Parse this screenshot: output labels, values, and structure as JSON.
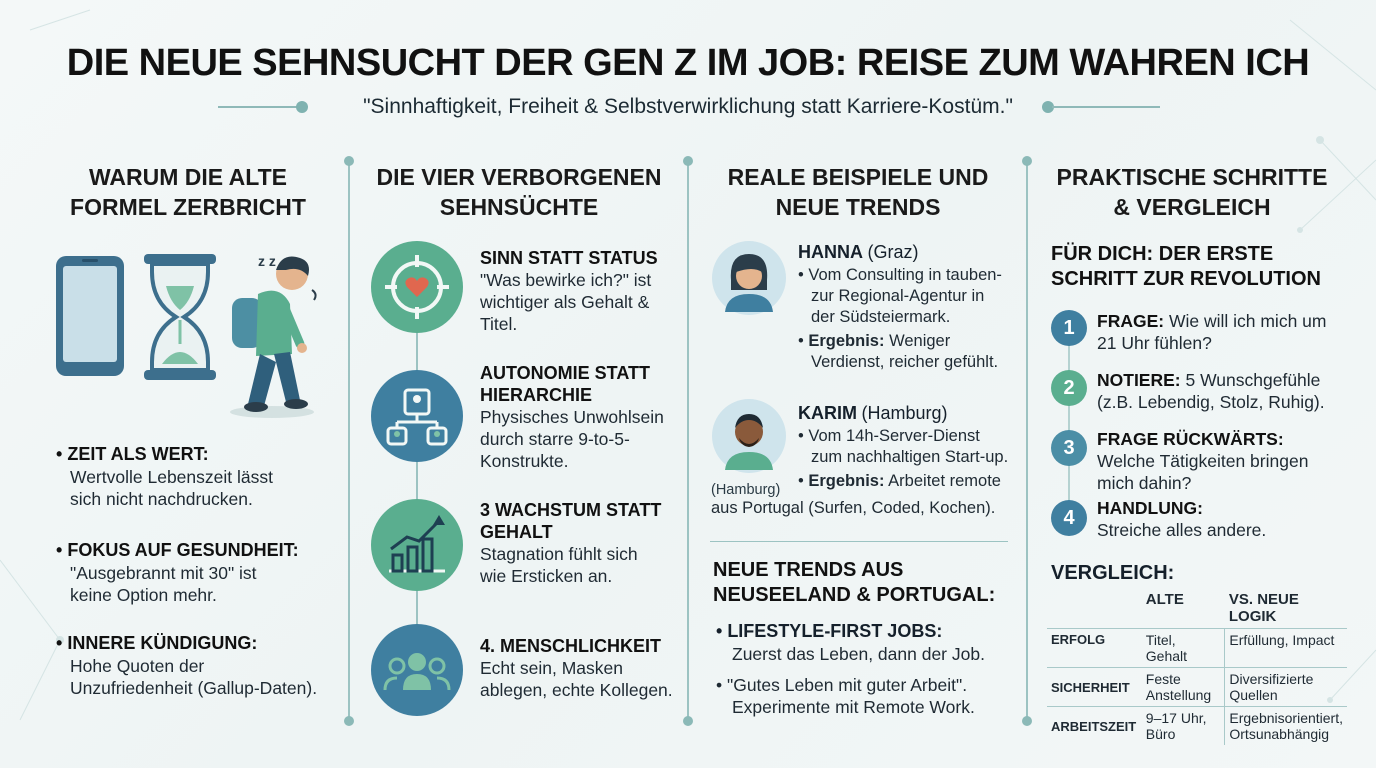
{
  "title": "DIE NEUE SEHNSUCHT DER GEN Z IM JOB: REISE ZUM WAHREN ICH",
  "subtitle": "\"Sinnhaftigkeit, Freiheit & Selbstverwirklichung statt Karriere-Kostüm.\"",
  "col1": {
    "heading_line1": "WARUM DIE ALTE",
    "heading_line2": "FORMEL ZERBRICHT",
    "sleep_text": "z z",
    "items": [
      {
        "title": "ZEIT ALS WERT:",
        "body_line1": "Wertvolle Lebenszeit lässt",
        "body_line2": "sich nicht nachdrucken."
      },
      {
        "title": "FOKUS AUF GESUNDHEIT:",
        "body_line1": "\"Ausgebrannt mit 30\" ist",
        "body_line2": "keine Option mehr."
      },
      {
        "title": "INNERE KÜNDIGUNG:",
        "body_line1": "Hohe Quoten der",
        "body_line2": "Unzufriedenheit (Gallup-Daten)."
      }
    ]
  },
  "col2": {
    "heading_line1": "DIE VIER VERBORGENEN",
    "heading_line2": "SEHNSÜCHTE",
    "needs": [
      {
        "icon": "target-heart-icon",
        "title_line1": "SINN STATT STATUS",
        "title_line2": "",
        "body_line1": "\"Was bewirke ich?\" ist",
        "body_line2": "wichtiger als Gehalt &",
        "body_line3": "Titel."
      },
      {
        "icon": "hierarchy-icon",
        "title_line1": "AUTONOMIE STATT",
        "title_line2": "HIERARCHIE",
        "body_line1": "Physisches Unwohlsein",
        "body_line2": "durch starre 9-to-5-",
        "body_line3": "Konstrukte."
      },
      {
        "icon": "growth-chart-icon",
        "title_line1": "3 WACHSTUM STATT",
        "title_line2": "GEHALT",
        "body_line1": "Stagnation fühlt sich",
        "body_line2": "wie Ersticken an.",
        "body_line3": ""
      },
      {
        "icon": "people-group-icon",
        "title_line1": "4. MENSCHLICHKEIT",
        "title_line2": "",
        "body_line1": "Echt sein, Masken",
        "body_line2": "ablegen, echte Kollegen.",
        "body_line3": ""
      }
    ]
  },
  "col3": {
    "heading_line1": "REALE BEISPIELE UND",
    "heading_line2": "NEUE TRENDS",
    "hanna": {
      "name": "HANNA",
      "city": "(Graz)",
      "b1_line1": "Vom Consulting in tauben-",
      "b1_line2": "zur Regional-Agentur in",
      "b1_line3": "der Südsteiermark.",
      "b2_label": "Ergebnis:",
      "b2_line1": "Weniger",
      "b2_line2": "Verdienst, reicher gefühlt."
    },
    "karim": {
      "name": "KARIM",
      "city": "(Hamburg)",
      "caption": "(Hamburg)",
      "b1_line1": "Vom 14h-Server-Dienst",
      "b1_line2": "zum nachhaltigen Start-up.",
      "b2_label": "Ergebnis:",
      "b2_line1": "Arbeitet remote",
      "b2_line2": "aus Portugal (Surfen, Coded, Kochen)."
    },
    "trends_heading_line1": "NEUE TRENDS AUS",
    "trends_heading_line2": "NEUSEELAND & PORTUGAL:",
    "trends": [
      {
        "line1": "LIFESTYLE-FIRST JOBS:",
        "line2": "Zuerst das Leben, dann der Job."
      },
      {
        "line1": "\"Gutes Leben mit guter Arbeit\".",
        "line2": "Experimente mit Remote Work."
      }
    ]
  },
  "col4": {
    "heading_line1": "PRAKTISCHE SCHRITTE",
    "heading_line2": "& VERGLEICH",
    "sub_line1": "FÜR DICH: DER ERSTE",
    "sub_line2": "SCHRITT ZUR REVOLUTION",
    "steps": [
      {
        "num": "1",
        "label": "FRAGE:",
        "rest_line1": "Wie will ich mich um",
        "line2": "21 Uhr fühlen?"
      },
      {
        "num": "2",
        "label": "NOTIERE:",
        "rest_line1": "5 Wunschgefühle",
        "line2": "(z.B. Lebendig, Stolz, Ruhig)."
      },
      {
        "num": "3",
        "label": "FRAGE RÜCKWÄRTS:",
        "rest_line1": "",
        "line2": "Welche Tätigkeiten bringen",
        "line3": "mich dahin?"
      },
      {
        "num": "4",
        "label": "HANDLUNG:",
        "rest_line1": "",
        "line2": "Streiche alles andere."
      }
    ],
    "compare_heading": "VERGLEICH:",
    "table_head_old": "ALTE",
    "table_head_new": "VS. NEUE LOGIK",
    "rows": [
      {
        "label": "ERFOLG",
        "old_line1": "Titel, Gehalt",
        "old_line2": "",
        "new_line1": "Erfüllung, Impact",
        "new_line2": ""
      },
      {
        "label": "SICHERHEIT",
        "old_line1": "Feste",
        "old_line2": "Anstellung",
        "new_line1": "Diversifizierte",
        "new_line2": "Quellen"
      },
      {
        "label": "ARBEITSZEIT",
        "old_line1": "9–17 Uhr,",
        "old_line2": "Büro",
        "new_line1": "Ergebnisorientiert,",
        "new_line2": "Ortsunabhängig"
      }
    ]
  },
  "colors": {
    "green": "#5aae8f",
    "blue": "#3f7fa0",
    "teal_line": "#9cc3c2"
  }
}
